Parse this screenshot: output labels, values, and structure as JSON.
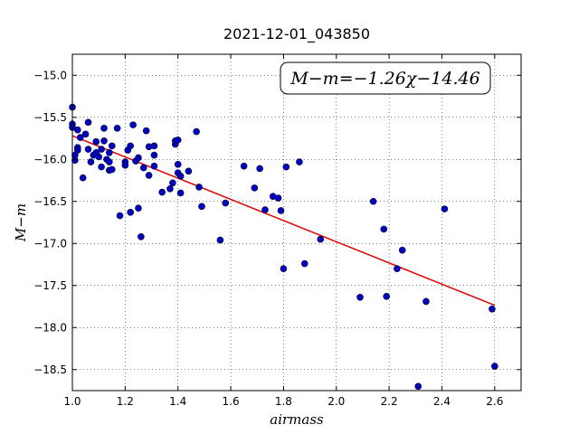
{
  "chart_data": {
    "type": "scatter",
    "title": "2021-12-01_043850",
    "xlabel": "airmass",
    "ylabel": "M−m",
    "xlim": [
      1.0,
      2.7
    ],
    "ylim": [
      -18.75,
      -14.75
    ],
    "x_ticks": [
      1.0,
      1.2,
      1.4,
      1.6,
      1.8,
      2.0,
      2.2,
      2.4,
      2.6
    ],
    "x_tick_labels": [
      "1.0",
      "1.2",
      "1.4",
      "1.6",
      "1.8",
      "2.0",
      "2.2",
      "2.4",
      "2.6"
    ],
    "y_ticks": [
      -15.0,
      -15.5,
      -16.0,
      -16.5,
      -17.0,
      -17.5,
      -18.0,
      -18.5
    ],
    "y_tick_labels": [
      "−15.0",
      "−15.5",
      "−16.0",
      "−16.5",
      "−17.0",
      "−17.5",
      "−18.0",
      "−18.5"
    ],
    "grid": true,
    "marker_color": "#0000bf",
    "fit_color": "#e00000",
    "annotation": "M−m=−1.26χ−14.46",
    "fit": {
      "slope": -1.26,
      "intercept": -14.46,
      "x_range": [
        1.0,
        2.6
      ]
    },
    "points": [
      [
        1.0,
        -15.38
      ],
      [
        1.0,
        -15.58
      ],
      [
        1.0,
        -15.62
      ],
      [
        1.01,
        -15.95
      ],
      [
        1.01,
        -16.01
      ],
      [
        1.02,
        -15.65
      ],
      [
        1.02,
        -15.86
      ],
      [
        1.02,
        -15.89
      ],
      [
        1.03,
        -15.74
      ],
      [
        1.04,
        -16.22
      ],
      [
        1.05,
        -15.7
      ],
      [
        1.06,
        -15.56
      ],
      [
        1.06,
        -15.88
      ],
      [
        1.07,
        -16.03
      ],
      [
        1.08,
        -15.95
      ],
      [
        1.09,
        -15.79
      ],
      [
        1.09,
        -15.92
      ],
      [
        1.1,
        -15.97
      ],
      [
        1.11,
        -15.88
      ],
      [
        1.11,
        -16.09
      ],
      [
        1.12,
        -15.63
      ],
      [
        1.12,
        -15.78
      ],
      [
        1.13,
        -16.0
      ],
      [
        1.14,
        -16.03
      ],
      [
        1.14,
        -16.13
      ],
      [
        1.14,
        -15.92
      ],
      [
        1.15,
        -15.84
      ],
      [
        1.15,
        -16.12
      ],
      [
        1.17,
        -15.63
      ],
      [
        1.18,
        -16.67
      ],
      [
        1.2,
        -16.03
      ],
      [
        1.2,
        -16.07
      ],
      [
        1.21,
        -15.89
      ],
      [
        1.22,
        -16.63
      ],
      [
        1.22,
        -15.84
      ],
      [
        1.23,
        -15.59
      ],
      [
        1.24,
        -16.02
      ],
      [
        1.25,
        -15.98
      ],
      [
        1.25,
        -16.58
      ],
      [
        1.26,
        -16.92
      ],
      [
        1.27,
        -16.1
      ],
      [
        1.28,
        -15.66
      ],
      [
        1.29,
        -16.19
      ],
      [
        1.29,
        -15.85
      ],
      [
        1.31,
        -15.95
      ],
      [
        1.31,
        -15.84
      ],
      [
        1.31,
        -16.08
      ],
      [
        1.34,
        -16.39
      ],
      [
        1.37,
        -16.35
      ],
      [
        1.38,
        -16.28
      ],
      [
        1.39,
        -15.82
      ],
      [
        1.39,
        -15.78
      ],
      [
        1.4,
        -16.06
      ],
      [
        1.4,
        -15.77
      ],
      [
        1.4,
        -16.16
      ],
      [
        1.41,
        -16.2
      ],
      [
        1.41,
        -16.4
      ],
      [
        1.44,
        -16.14
      ],
      [
        1.47,
        -15.67
      ],
      [
        1.48,
        -16.33
      ],
      [
        1.49,
        -16.56
      ],
      [
        1.56,
        -16.96
      ],
      [
        1.58,
        -16.52
      ],
      [
        1.65,
        -16.08
      ],
      [
        1.69,
        -16.34
      ],
      [
        1.71,
        -16.11
      ],
      [
        1.73,
        -16.6
      ],
      [
        1.76,
        -16.44
      ],
      [
        1.78,
        -16.46
      ],
      [
        1.79,
        -16.61
      ],
      [
        1.8,
        -17.3
      ],
      [
        1.81,
        -16.09
      ],
      [
        1.86,
        -16.03
      ],
      [
        1.88,
        -17.24
      ],
      [
        1.94,
        -16.95
      ],
      [
        2.09,
        -17.64
      ],
      [
        2.14,
        -16.5
      ],
      [
        2.18,
        -16.83
      ],
      [
        2.19,
        -17.63
      ],
      [
        2.23,
        -17.3
      ],
      [
        2.25,
        -17.08
      ],
      [
        2.31,
        -18.7
      ],
      [
        2.34,
        -17.69
      ],
      [
        2.41,
        -16.59
      ],
      [
        2.59,
        -17.78
      ],
      [
        2.6,
        -18.46
      ]
    ]
  }
}
